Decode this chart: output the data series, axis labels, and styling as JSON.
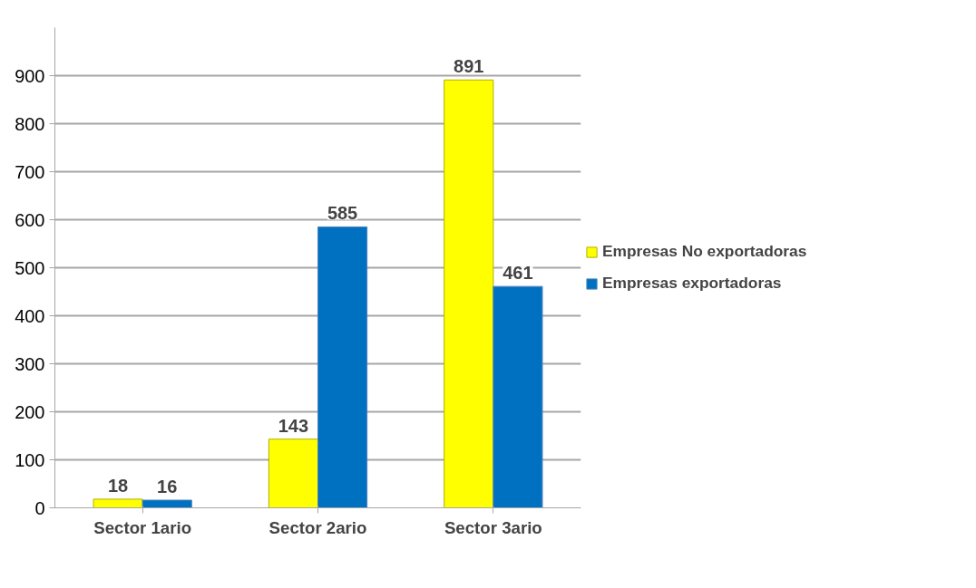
{
  "chart_data": {
    "type": "bar",
    "categories": [
      "Sector 1ario",
      "Sector 2ario",
      "Sector 3ario"
    ],
    "series": [
      {
        "name": "Empresas No exportadoras",
        "color": "#ffff00",
        "values": [
          18,
          143,
          891
        ]
      },
      {
        "name": "Empresas exportadoras",
        "color": "#0070c0",
        "values": [
          16,
          585,
          461
        ]
      }
    ],
    "ylim": [
      0,
      1000
    ],
    "yticks": [
      0,
      100,
      200,
      300,
      400,
      500,
      600,
      700,
      800,
      900
    ],
    "grid": "y",
    "legend": "right",
    "data_labels": true
  }
}
